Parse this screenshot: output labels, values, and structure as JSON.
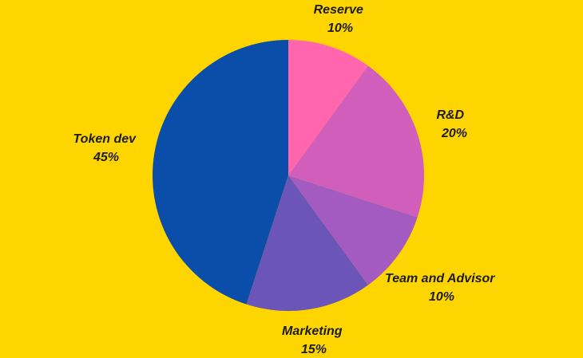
{
  "colors": {
    "background": "#FFD500",
    "label_text": "#1C1C1C"
  },
  "chart_data": {
    "type": "pie",
    "title": "",
    "start_angle_deg": 0,
    "direction": "clockwise",
    "slices": [
      {
        "label": "Reserve",
        "value": 10,
        "value_label": "10%",
        "color": "#FF66AE"
      },
      {
        "label": "R&D",
        "value": 20,
        "value_label": "20%",
        "color": "#D25EBB"
      },
      {
        "label": "Team and Advisor",
        "value": 10,
        "value_label": "10%",
        "color": "#A35AC1"
      },
      {
        "label": "Marketing",
        "value": 15,
        "value_label": "15%",
        "color": "#6B55B8"
      },
      {
        "label": "Token dev",
        "value": 45,
        "value_label": "45%",
        "color": "#0A4EA9"
      }
    ]
  }
}
